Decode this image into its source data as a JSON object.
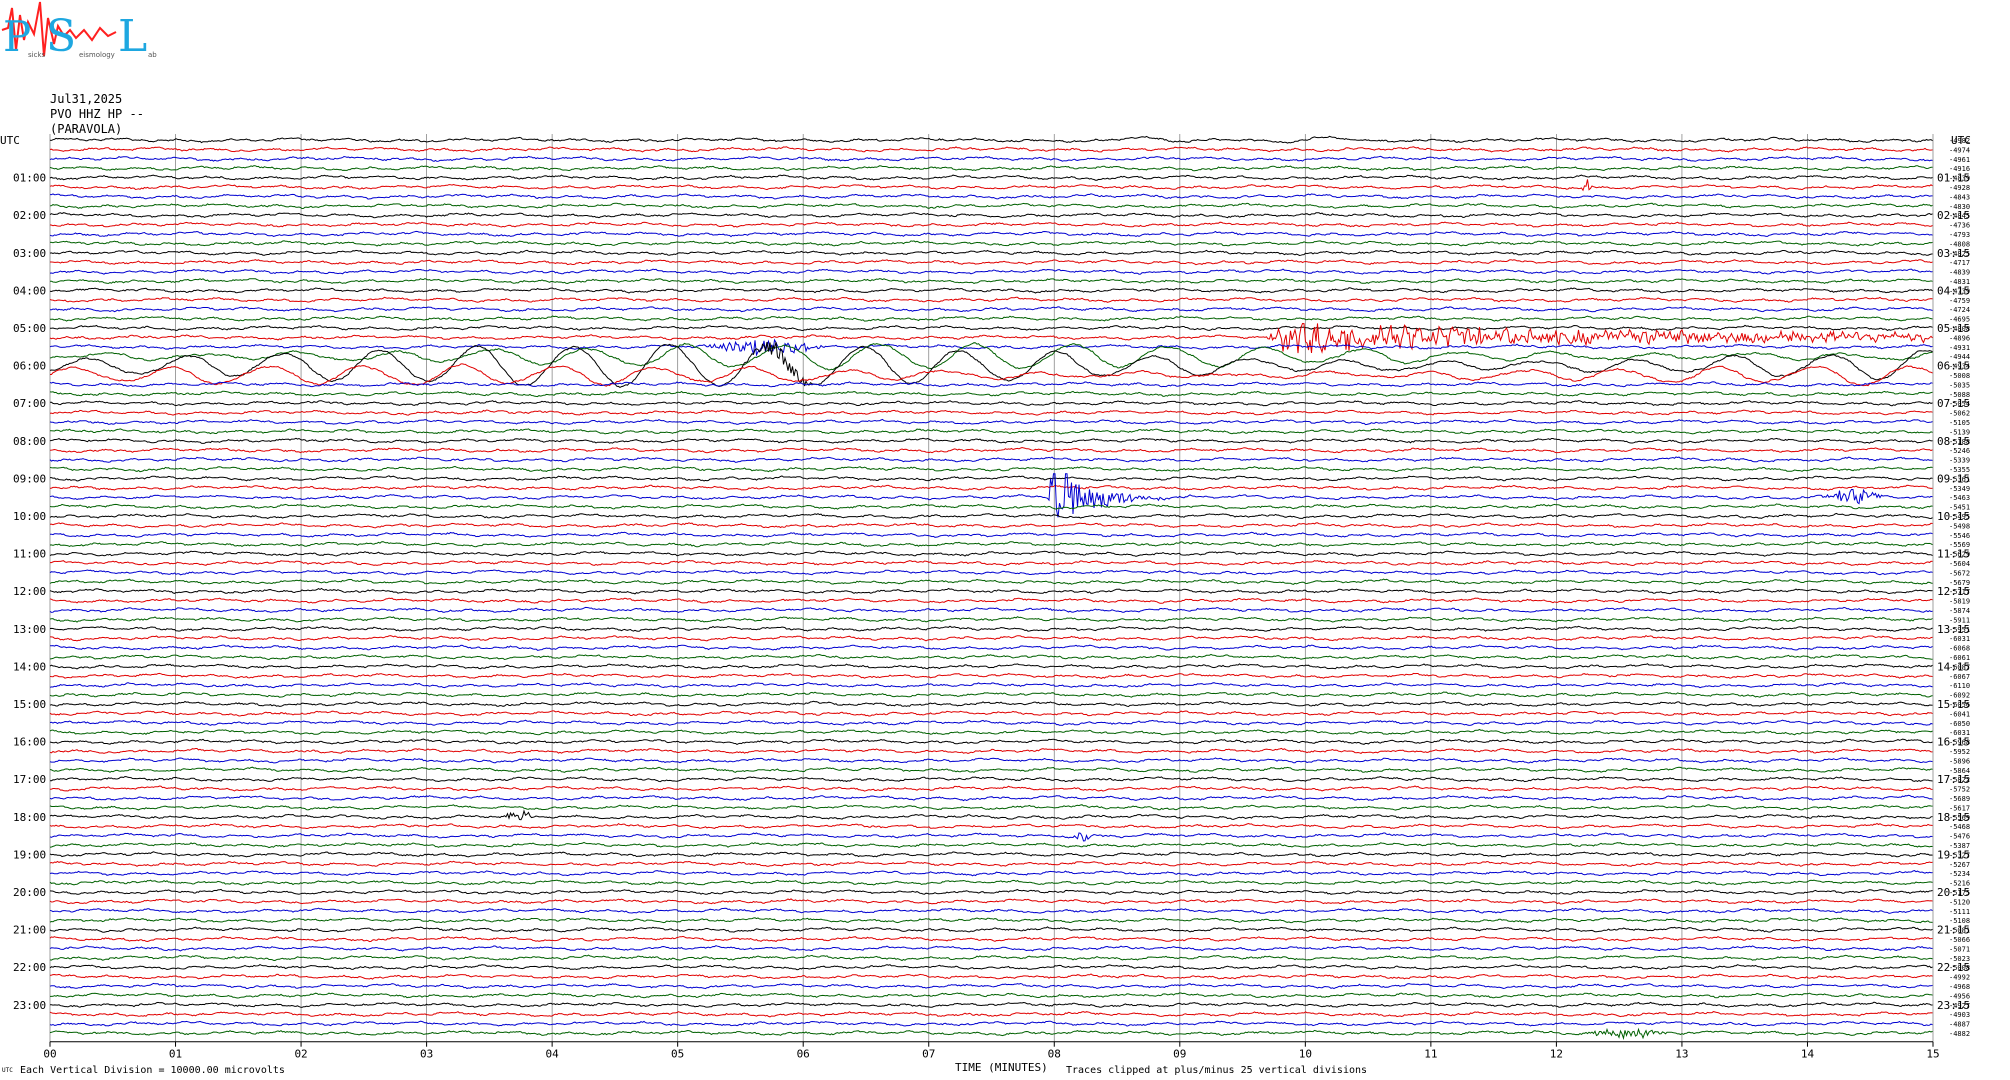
{
  "logo": {
    "letters": [
      "P",
      "S",
      "L"
    ],
    "small_text": [
      "sicks",
      "eismology",
      "ab"
    ],
    "colors": {
      "primary": "#1ea7e0",
      "accent": "#ff2020"
    }
  },
  "header": {
    "date": "Jul31,2025",
    "channel": "PVO HHZ HP --",
    "station": "(PARAVOLA)"
  },
  "chart_data": {
    "type": "line",
    "title": "",
    "xlabel": "TIME (MINUTES)",
    "x_ticks": [
      "00",
      "01",
      "02",
      "03",
      "04",
      "05",
      "06",
      "07",
      "08",
      "09",
      "10",
      "11",
      "12",
      "13",
      "14",
      "15"
    ],
    "xlim": [
      0,
      15
    ],
    "corner_label_left": "UTC",
    "corner_label_right": "UTC",
    "left_hour_labels": [
      "01:00",
      "02:00",
      "03:00",
      "04:00",
      "05:00",
      "06:00",
      "07:00",
      "08:00",
      "09:00",
      "10:00",
      "11:00",
      "12:00",
      "13:00",
      "14:00",
      "15:00",
      "16:00",
      "17:00",
      "18:00",
      "19:00",
      "20:00",
      "21:00",
      "22:00",
      "23:00"
    ],
    "right_hour_labels": [
      "01:15",
      "02:15",
      "03:15",
      "04:15",
      "05:15",
      "06:15",
      "07:15",
      "08:15",
      "09:15",
      "10:15",
      "11:15",
      "12:15",
      "13:15",
      "14:15",
      "15:15",
      "16:15",
      "17:15",
      "18:15",
      "19:15",
      "20:15",
      "21:15",
      "22:15",
      "23:15"
    ],
    "trace_colors": [
      "#000000",
      "#e00000",
      "#0000d0",
      "#006000"
    ],
    "trace_count": 96,
    "offsets": [
      "-4982",
      "-4974",
      "-4961",
      "-4916",
      "-4839",
      "-4928",
      "-4843",
      "-4830",
      "-4845",
      "-4736",
      "-4793",
      "-4808",
      "-4825",
      "-4717",
      "-4839",
      "-4831",
      "-4739",
      "-4759",
      "-4724",
      "-4695",
      "-4808",
      "-4896",
      "-4931",
      "-4944",
      "-4934",
      "-5008",
      "-5035",
      "-5088",
      "-5054",
      "-5062",
      "-5105",
      "-5139",
      "-5188",
      "-5246",
      "-5339",
      "-5355",
      "-5361",
      "-5349",
      "-5463",
      "-5451",
      "-5495",
      "-5498",
      "-5546",
      "-5569",
      "-5629",
      "-5604",
      "-5672",
      "-5679",
      "-5717",
      "-5819",
      "-5874",
      "-5911",
      "-5951",
      "-6031",
      "-6068",
      "-6061",
      "-6087",
      "-6067",
      "-6110",
      "-6092",
      "-6056",
      "-6041",
      "-6050",
      "-6031",
      "-5968",
      "-5952",
      "-5896",
      "-5864",
      "-5822",
      "-5752",
      "-5689",
      "-5617",
      "-5569",
      "-5468",
      "-5476",
      "-5387",
      "-5327",
      "-5267",
      "-5234",
      "-5216",
      "-5175",
      "-5120",
      "-5111",
      "-5108",
      "-5081",
      "-5066",
      "-5071",
      "-5023",
      "-5008",
      "-4992",
      "-4968",
      "-4956",
      "-4927",
      "-4903",
      "-4887",
      "-4882"
    ],
    "events": [
      {
        "trace": 0,
        "start_min": 8.0,
        "end_min": 10.8,
        "amp_div": 0.7,
        "kind": "low-freq wobble"
      },
      {
        "trace": 5,
        "start_min": 12.2,
        "end_min": 12.3,
        "amp_div": 0.8,
        "kind": "spike"
      },
      {
        "trace": 21,
        "start_min": 9.7,
        "end_min": 15.0,
        "amp_div": 1.4,
        "kind": "teleseism"
      },
      {
        "trace": 22,
        "start_min": 5.2,
        "end_min": 6.2,
        "amp_div": 0.8,
        "kind": "burst"
      },
      {
        "trace": 23,
        "start_min": 0.0,
        "end_min": 15.0,
        "amp_div": 1.3,
        "kind": "low-freq wave"
      },
      {
        "trace": 24,
        "start_min": 0.0,
        "end_min": 15.0,
        "amp_div": 2.2,
        "kind": "low-freq wave"
      },
      {
        "trace": 24,
        "start_min": 5.5,
        "end_min": 6.1,
        "amp_div": 0.9,
        "kind": "burst"
      },
      {
        "trace": 25,
        "start_min": 0.0,
        "end_min": 15.0,
        "amp_div": 1.0,
        "kind": "low-freq wave"
      },
      {
        "trace": 38,
        "start_min": 7.95,
        "end_min": 9.1,
        "amp_div": 4.5,
        "kind": "local earthquake"
      },
      {
        "trace": 38,
        "start_min": 14.1,
        "end_min": 14.6,
        "amp_div": 0.8,
        "kind": "small event"
      },
      {
        "trace": 72,
        "start_min": 3.6,
        "end_min": 3.9,
        "amp_div": 0.5,
        "kind": "burst"
      },
      {
        "trace": 74,
        "start_min": 8.15,
        "end_min": 8.3,
        "amp_div": 0.6,
        "kind": "spike"
      },
      {
        "trace": 95,
        "start_min": 12.2,
        "end_min": 12.9,
        "amp_div": 0.5,
        "kind": "burst"
      }
    ]
  },
  "footer": {
    "scale_note": "Each Vertical Division = 10000.00 microvolts",
    "clip_note": "Traces clipped at plus/minus 25 vertical divisions",
    "corner_mark": "UTC"
  }
}
